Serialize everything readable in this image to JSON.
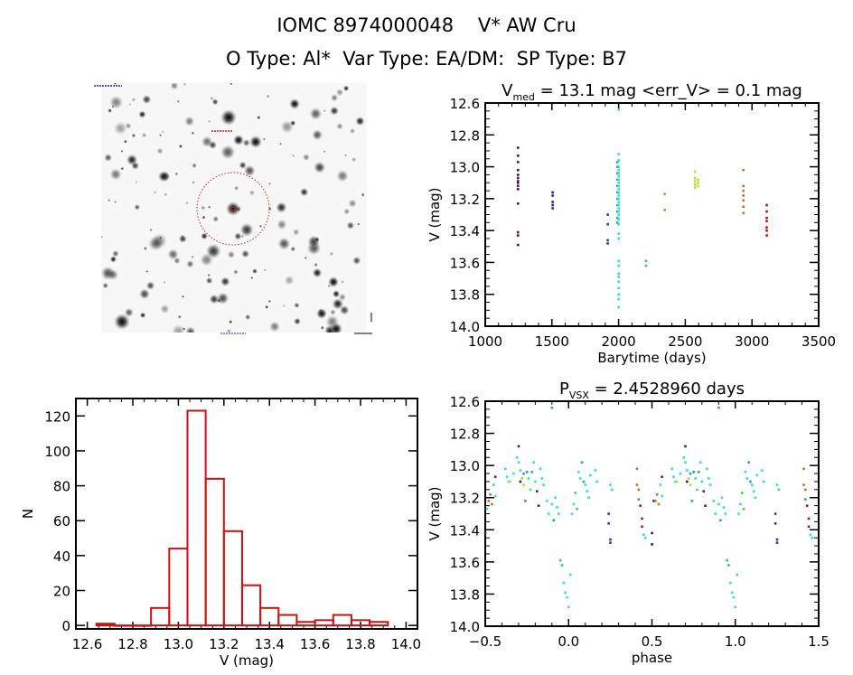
{
  "header": {
    "line1": "IOMC 8974000048    V* AW Cru",
    "line2": "O Type: Al*  Var Type: EA/DM:  SP Type: B7"
  },
  "sky_image": {
    "kind": "finding-chart",
    "circle_color": "#cc2222",
    "label_color": "#2222aa"
  },
  "chart_data": [
    {
      "id": "lightcurve",
      "type": "scatter",
      "title_main": "V",
      "title_sub": "med",
      "title_rest": " = 13.1 mag <err_V> = 0.1 mag",
      "xlabel": "Barytime (days)",
      "ylabel": "V (mag)",
      "xlim": [
        1000,
        3500
      ],
      "ylim": [
        14.0,
        12.6
      ],
      "y_inverted": true,
      "xticks": [
        1000,
        1500,
        2000,
        2500,
        3000,
        3500
      ],
      "xtick_labels": [
        "1000",
        "1500",
        "2000",
        "2500",
        "3000",
        "3500"
      ],
      "yticks": [
        12.6,
        12.8,
        13.0,
        13.2,
        13.4,
        13.6,
        13.8,
        14.0
      ],
      "ytick_labels": [
        "12.6",
        "12.8",
        "13.0",
        "13.2",
        "13.4",
        "13.6",
        "13.8",
        "14.0"
      ],
      "groups": [
        {
          "color": "#4b0f6e",
          "x": 1245,
          "y": [
            12.88,
            12.93,
            12.97,
            13.02,
            13.05,
            13.07,
            13.09,
            13.1,
            13.12,
            13.14,
            13.23,
            13.41,
            13.43,
            13.49
          ]
        },
        {
          "color": "#3a1a9a",
          "x": 1505,
          "y": [
            13.16,
            13.18,
            13.22,
            13.24,
            13.26
          ]
        },
        {
          "color": "#2a3aa8",
          "x": 1918,
          "y": [
            13.3,
            13.36,
            13.46,
            13.48
          ]
        },
        {
          "color": "#2a9ad0",
          "x": 1990,
          "y": [
            12.97,
            13.0,
            13.04,
            13.08,
            13.12,
            13.16,
            13.2,
            13.24,
            13.28,
            13.32,
            13.35
          ]
        },
        {
          "color": "#30e0c8",
          "x": 2000,
          "y": [
            12.64,
            12.92,
            12.96,
            13.0,
            13.02,
            13.04,
            13.06,
            13.08,
            13.1,
            13.12,
            13.14,
            13.16,
            13.18,
            13.2,
            13.22,
            13.24,
            13.26,
            13.28,
            13.3,
            13.33,
            13.36,
            13.42,
            13.45,
            13.59,
            13.62,
            13.67,
            13.69,
            13.72,
            13.76,
            13.8,
            13.83,
            13.88
          ]
        },
        {
          "color": "#30c870",
          "x": 2205,
          "y": [
            13.59,
            13.62
          ]
        },
        {
          "color": "#55cc33",
          "x": 2345,
          "y": [
            13.17,
            13.27
          ]
        },
        {
          "color": "#a8e030",
          "x": 2572,
          "y": [
            13.03,
            13.07,
            13.09,
            13.11,
            13.13
          ]
        },
        {
          "color": "#e8d020",
          "x": 2595,
          "y": [
            13.08,
            13.1,
            13.12
          ]
        },
        {
          "color": "#c87028",
          "x": 2935,
          "y": [
            13.02,
            13.12,
            13.15,
            13.18,
            13.21,
            13.25,
            13.29
          ]
        },
        {
          "color": "#b01818",
          "x": 3110,
          "y": [
            13.24,
            13.28,
            13.32,
            13.34,
            13.38,
            13.4,
            13.43
          ]
        }
      ]
    },
    {
      "id": "histogram",
      "type": "bar",
      "xlabel": "V (mag)",
      "ylabel": "N",
      "xlim": [
        12.55,
        14.05
      ],
      "ylim": [
        -2,
        130
      ],
      "xticks": [
        12.6,
        12.8,
        13.0,
        13.2,
        13.4,
        13.6,
        13.8,
        14.0
      ],
      "xtick_labels": [
        "12.6",
        "12.8",
        "13.0",
        "13.2",
        "13.4",
        "13.6",
        "13.8",
        "14.0"
      ],
      "yticks": [
        0,
        20,
        40,
        60,
        80,
        100,
        120
      ],
      "ytick_labels": [
        "0",
        "20",
        "40",
        "60",
        "80",
        "100",
        "120"
      ],
      "bin_width": 0.08,
      "bin_starts": [
        12.64,
        12.72,
        12.8,
        12.88,
        12.96,
        13.04,
        13.12,
        13.2,
        13.28,
        13.36,
        13.44,
        13.52,
        13.6,
        13.68,
        13.76,
        13.84
      ],
      "values": [
        1,
        0,
        0,
        10,
        44,
        123,
        84,
        54,
        23,
        10,
        6,
        2,
        3,
        6,
        3,
        2
      ],
      "bar_color": "#cc1111"
    },
    {
      "id": "phased",
      "type": "scatter",
      "title_main": "P",
      "title_sub": "VSX",
      "title_rest": " = 2.4528960 days",
      "xlabel": "phase",
      "ylabel": "V (mag)",
      "xlim": [
        -0.5,
        1.5
      ],
      "ylim": [
        14.0,
        12.6
      ],
      "y_inverted": true,
      "xticks": [
        -0.5,
        0.0,
        0.5,
        1.0,
        1.5
      ],
      "xtick_labels": [
        "−0.5",
        "0.0",
        "0.5",
        "1.0",
        "1.5"
      ],
      "yticks": [
        12.6,
        12.8,
        13.0,
        13.2,
        13.4,
        13.6,
        13.8,
        14.0
      ],
      "ytick_labels": [
        "12.6",
        "12.8",
        "13.0",
        "13.2",
        "13.4",
        "13.6",
        "13.8",
        "14.0"
      ],
      "period_days": 2.452896,
      "points": [
        {
          "p": -0.48,
          "v": 13.22,
          "c": "#c87028"
        },
        {
          "p": -0.47,
          "v": 13.18,
          "c": "#c87028"
        },
        {
          "p": -0.46,
          "v": 13.24,
          "c": "#c87028"
        },
        {
          "p": -0.49,
          "v": 13.27,
          "c": "#30e0c8"
        },
        {
          "p": -0.5,
          "v": 13.42,
          "c": "#4b0f6e"
        },
        {
          "p": -0.44,
          "v": 13.07,
          "c": "#3a1a9a"
        },
        {
          "p": -0.45,
          "v": 13.12,
          "c": "#30e0c8"
        },
        {
          "p": -0.44,
          "v": 13.19,
          "c": "#30e0c8"
        },
        {
          "p": -0.38,
          "v": 13.02,
          "c": "#30e0c8"
        },
        {
          "p": -0.37,
          "v": 13.07,
          "c": "#30e0c8"
        },
        {
          "p": -0.36,
          "v": 13.1,
          "c": "#30e0c8"
        },
        {
          "p": -0.35,
          "v": 13.1,
          "c": "#e8d020"
        },
        {
          "p": -0.33,
          "v": 13.05,
          "c": "#30e0c8"
        },
        {
          "p": -0.31,
          "v": 12.95,
          "c": "#30e0c8"
        },
        {
          "p": -0.3,
          "v": 12.88,
          "c": "#4b0f6e"
        },
        {
          "p": -0.3,
          "v": 12.98,
          "c": "#30e0c8"
        },
        {
          "p": -0.29,
          "v": 13.03,
          "c": "#30e0c8"
        },
        {
          "p": -0.29,
          "v": 13.1,
          "c": "#4b0f6e"
        },
        {
          "p": -0.28,
          "v": 13.08,
          "c": "#a8e030"
        },
        {
          "p": -0.27,
          "v": 13.12,
          "c": "#a8e030"
        },
        {
          "p": -0.27,
          "v": 13.05,
          "c": "#2a9ad0"
        },
        {
          "p": -0.26,
          "v": 13.22,
          "c": "#2a9ad0"
        },
        {
          "p": -0.25,
          "v": 13.04,
          "c": "#2a9ad0"
        },
        {
          "p": -0.24,
          "v": 13.08,
          "c": "#30e0c8"
        },
        {
          "p": -0.23,
          "v": 13.15,
          "c": "#30e0c8"
        },
        {
          "p": -0.22,
          "v": 13.04,
          "c": "#2a9ad0"
        },
        {
          "p": -0.21,
          "v": 12.98,
          "c": "#30e0c8"
        },
        {
          "p": -0.2,
          "v": 13.1,
          "c": "#30e0c8"
        },
        {
          "p": -0.19,
          "v": 13.16,
          "c": "#3a1a9a"
        },
        {
          "p": -0.18,
          "v": 13.25,
          "c": "#3a1a9a"
        },
        {
          "p": -0.17,
          "v": 13.02,
          "c": "#30e0c8"
        },
        {
          "p": -0.16,
          "v": 13.08,
          "c": "#30e0c8"
        },
        {
          "p": -0.15,
          "v": 13.12,
          "c": "#30e0c8"
        },
        {
          "p": -0.13,
          "v": 13.22,
          "c": "#30e0c8"
        },
        {
          "p": -0.12,
          "v": 13.3,
          "c": "#30e0c8"
        },
        {
          "p": -0.1,
          "v": 13.24,
          "c": "#30e0c8"
        },
        {
          "p": -0.1,
          "v": 12.64,
          "c": "#2a9ad0"
        },
        {
          "p": -0.09,
          "v": 13.34,
          "c": "#2a9ad0"
        },
        {
          "p": -0.08,
          "v": 13.2,
          "c": "#30e0c8"
        },
        {
          "p": -0.07,
          "v": 13.26,
          "c": "#30e0c8"
        },
        {
          "p": -0.06,
          "v": 13.3,
          "c": "#30e0c8"
        },
        {
          "p": -0.05,
          "v": 13.59,
          "c": "#30c870"
        },
        {
          "p": -0.04,
          "v": 13.62,
          "c": "#30c870"
        },
        {
          "p": -0.03,
          "v": 13.73,
          "c": "#30e0c8"
        },
        {
          "p": -0.02,
          "v": 13.79,
          "c": "#30e0c8"
        },
        {
          "p": -0.01,
          "v": 13.82,
          "c": "#30e0c8"
        },
        {
          "p": 0.0,
          "v": 13.88,
          "c": "#30e0c8"
        },
        {
          "p": 0.01,
          "v": 13.68,
          "c": "#30e0c8"
        },
        {
          "p": 0.02,
          "v": 13.3,
          "c": "#30e0c8"
        },
        {
          "p": 0.03,
          "v": 13.24,
          "c": "#30e0c8"
        },
        {
          "p": 0.04,
          "v": 13.17,
          "c": "#55cc33"
        },
        {
          "p": 0.05,
          "v": 13.27,
          "c": "#55cc33"
        },
        {
          "p": 0.06,
          "v": 13.04,
          "c": "#30e0c8"
        },
        {
          "p": 0.07,
          "v": 13.08,
          "c": "#30e0c8"
        },
        {
          "p": 0.08,
          "v": 12.98,
          "c": "#2a9ad0"
        },
        {
          "p": 0.09,
          "v": 13.1,
          "c": "#2a9ad0"
        },
        {
          "p": 0.1,
          "v": 13.12,
          "c": "#30e0c8"
        },
        {
          "p": 0.11,
          "v": 13.16,
          "c": "#30e0c8"
        },
        {
          "p": 0.12,
          "v": 13.2,
          "c": "#30e0c8"
        },
        {
          "p": 0.13,
          "v": 13.06,
          "c": "#30e0c8"
        },
        {
          "p": 0.16,
          "v": 13.03,
          "c": "#30e0c8"
        },
        {
          "p": 0.17,
          "v": 13.1,
          "c": "#30e0c8"
        },
        {
          "p": 0.25,
          "v": 13.12,
          "c": "#30e0c8"
        },
        {
          "p": 0.26,
          "v": 13.15,
          "c": "#30e0c8"
        },
        {
          "p": 0.24,
          "v": 13.3,
          "c": "#2a3aa8"
        },
        {
          "p": 0.24,
          "v": 13.36,
          "c": "#2a3aa8"
        },
        {
          "p": 0.25,
          "v": 13.46,
          "c": "#2a3aa8"
        },
        {
          "p": 0.25,
          "v": 13.48,
          "c": "#2a3aa8"
        },
        {
          "p": 0.41,
          "v": 13.02,
          "c": "#c87028"
        },
        {
          "p": 0.41,
          "v": 13.12,
          "c": "#c87028"
        },
        {
          "p": 0.42,
          "v": 13.15,
          "c": "#c87028"
        },
        {
          "p": 0.42,
          "v": 13.21,
          "c": "#2a9ad0"
        },
        {
          "p": 0.43,
          "v": 13.25,
          "c": "#b01818"
        },
        {
          "p": 0.44,
          "v": 13.33,
          "c": "#b01818"
        },
        {
          "p": 0.44,
          "v": 13.38,
          "c": "#b01818"
        },
        {
          "p": 0.45,
          "v": 13.43,
          "c": "#30e0c8"
        },
        {
          "p": 0.46,
          "v": 13.45,
          "c": "#30e0c8"
        },
        {
          "p": 0.5,
          "v": 13.42,
          "c": "#4b0f6e"
        },
        {
          "p": 0.5,
          "v": 13.49,
          "c": "#4b0f6e"
        },
        {
          "p": 0.51,
          "v": 13.22,
          "c": "#3a1a9a"
        },
        {
          "p": 0.52,
          "v": 13.22,
          "c": "#c87028"
        },
        {
          "p": 0.53,
          "v": 13.18,
          "c": "#c87028"
        },
        {
          "p": 0.54,
          "v": 13.24,
          "c": "#c87028"
        },
        {
          "p": 0.56,
          "v": 13.07,
          "c": "#3a1a9a"
        },
        {
          "p": 0.55,
          "v": 13.12,
          "c": "#30e0c8"
        },
        {
          "p": 0.56,
          "v": 13.19,
          "c": "#30e0c8"
        },
        {
          "p": 0.62,
          "v": 13.02,
          "c": "#30e0c8"
        },
        {
          "p": 0.63,
          "v": 13.07,
          "c": "#30e0c8"
        },
        {
          "p": 0.64,
          "v": 13.1,
          "c": "#30e0c8"
        },
        {
          "p": 0.65,
          "v": 13.1,
          "c": "#e8d020"
        },
        {
          "p": 0.67,
          "v": 13.05,
          "c": "#30e0c8"
        },
        {
          "p": 0.69,
          "v": 12.95,
          "c": "#30e0c8"
        },
        {
          "p": 0.7,
          "v": 12.88,
          "c": "#4b0f6e"
        },
        {
          "p": 0.7,
          "v": 12.98,
          "c": "#30e0c8"
        },
        {
          "p": 0.71,
          "v": 13.03,
          "c": "#30e0c8"
        },
        {
          "p": 0.71,
          "v": 13.1,
          "c": "#4b0f6e"
        },
        {
          "p": 0.72,
          "v": 13.08,
          "c": "#a8e030"
        },
        {
          "p": 0.73,
          "v": 13.12,
          "c": "#a8e030"
        },
        {
          "p": 0.73,
          "v": 13.05,
          "c": "#2a9ad0"
        },
        {
          "p": 0.74,
          "v": 13.22,
          "c": "#2a9ad0"
        },
        {
          "p": 0.75,
          "v": 13.04,
          "c": "#2a9ad0"
        },
        {
          "p": 0.76,
          "v": 13.08,
          "c": "#30e0c8"
        },
        {
          "p": 0.77,
          "v": 13.15,
          "c": "#30e0c8"
        },
        {
          "p": 0.78,
          "v": 13.04,
          "c": "#2a9ad0"
        },
        {
          "p": 0.79,
          "v": 12.98,
          "c": "#30e0c8"
        },
        {
          "p": 0.8,
          "v": 13.1,
          "c": "#30e0c8"
        },
        {
          "p": 0.81,
          "v": 13.16,
          "c": "#3a1a9a"
        },
        {
          "p": 0.82,
          "v": 13.25,
          "c": "#3a1a9a"
        },
        {
          "p": 0.83,
          "v": 13.02,
          "c": "#30e0c8"
        },
        {
          "p": 0.84,
          "v": 13.08,
          "c": "#30e0c8"
        },
        {
          "p": 0.85,
          "v": 13.12,
          "c": "#30e0c8"
        },
        {
          "p": 0.87,
          "v": 13.22,
          "c": "#30e0c8"
        },
        {
          "p": 0.88,
          "v": 13.3,
          "c": "#30e0c8"
        },
        {
          "p": 0.9,
          "v": 13.24,
          "c": "#30e0c8"
        },
        {
          "p": 0.9,
          "v": 12.64,
          "c": "#2a9ad0"
        },
        {
          "p": 0.91,
          "v": 13.34,
          "c": "#2a9ad0"
        },
        {
          "p": 0.92,
          "v": 13.2,
          "c": "#30e0c8"
        },
        {
          "p": 0.93,
          "v": 13.26,
          "c": "#30e0c8"
        },
        {
          "p": 0.94,
          "v": 13.3,
          "c": "#30e0c8"
        },
        {
          "p": 0.95,
          "v": 13.59,
          "c": "#30c870"
        },
        {
          "p": 0.96,
          "v": 13.62,
          "c": "#30c870"
        },
        {
          "p": 0.97,
          "v": 13.73,
          "c": "#30e0c8"
        },
        {
          "p": 0.98,
          "v": 13.79,
          "c": "#30e0c8"
        },
        {
          "p": 0.99,
          "v": 13.82,
          "c": "#30e0c8"
        },
        {
          "p": 1.0,
          "v": 13.88,
          "c": "#30e0c8"
        },
        {
          "p": 1.01,
          "v": 13.68,
          "c": "#30e0c8"
        },
        {
          "p": 1.02,
          "v": 13.3,
          "c": "#30e0c8"
        },
        {
          "p": 1.03,
          "v": 13.24,
          "c": "#30e0c8"
        },
        {
          "p": 1.04,
          "v": 13.17,
          "c": "#55cc33"
        },
        {
          "p": 1.05,
          "v": 13.27,
          "c": "#55cc33"
        },
        {
          "p": 1.06,
          "v": 13.04,
          "c": "#30e0c8"
        },
        {
          "p": 1.07,
          "v": 13.08,
          "c": "#30e0c8"
        },
        {
          "p": 1.08,
          "v": 12.98,
          "c": "#2a9ad0"
        },
        {
          "p": 1.09,
          "v": 13.1,
          "c": "#2a9ad0"
        },
        {
          "p": 1.1,
          "v": 13.12,
          "c": "#30e0c8"
        },
        {
          "p": 1.11,
          "v": 13.16,
          "c": "#30e0c8"
        },
        {
          "p": 1.12,
          "v": 13.2,
          "c": "#30e0c8"
        },
        {
          "p": 1.13,
          "v": 13.06,
          "c": "#30e0c8"
        },
        {
          "p": 1.16,
          "v": 13.03,
          "c": "#30e0c8"
        },
        {
          "p": 1.17,
          "v": 13.1,
          "c": "#30e0c8"
        },
        {
          "p": 1.25,
          "v": 13.12,
          "c": "#30e0c8"
        },
        {
          "p": 1.26,
          "v": 13.15,
          "c": "#30e0c8"
        },
        {
          "p": 1.24,
          "v": 13.3,
          "c": "#2a3aa8"
        },
        {
          "p": 1.24,
          "v": 13.36,
          "c": "#2a3aa8"
        },
        {
          "p": 1.25,
          "v": 13.46,
          "c": "#2a3aa8"
        },
        {
          "p": 1.25,
          "v": 13.48,
          "c": "#2a3aa8"
        },
        {
          "p": 1.41,
          "v": 13.02,
          "c": "#c87028"
        },
        {
          "p": 1.41,
          "v": 13.12,
          "c": "#c87028"
        },
        {
          "p": 1.42,
          "v": 13.15,
          "c": "#c87028"
        },
        {
          "p": 1.42,
          "v": 13.21,
          "c": "#2a9ad0"
        },
        {
          "p": 1.43,
          "v": 13.25,
          "c": "#b01818"
        },
        {
          "p": 1.44,
          "v": 13.33,
          "c": "#b01818"
        },
        {
          "p": 1.44,
          "v": 13.38,
          "c": "#b01818"
        },
        {
          "p": 1.45,
          "v": 13.43,
          "c": "#30e0c8"
        },
        {
          "p": 1.46,
          "v": 13.45,
          "c": "#30e0c8"
        }
      ]
    }
  ]
}
